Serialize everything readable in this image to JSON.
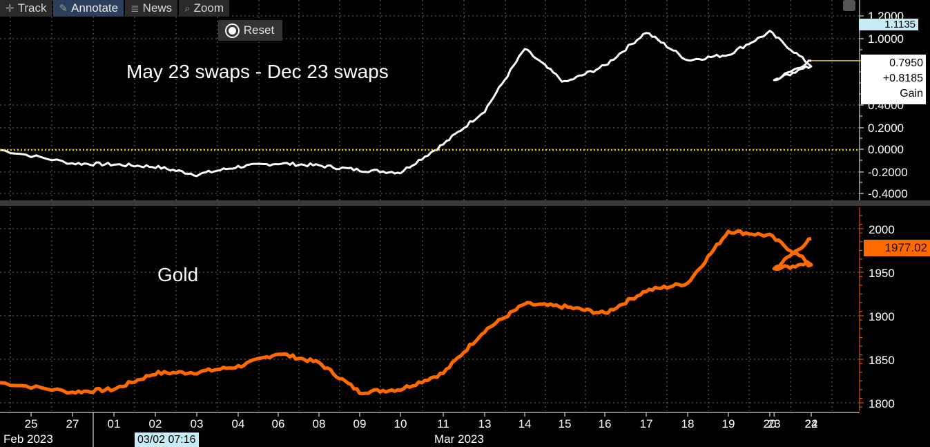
{
  "toolbar": {
    "track": "Track",
    "annotate": "Annotate",
    "news": "News",
    "zoom": "Zoom",
    "reset": "Reset"
  },
  "labels": {
    "top_series": "May 23 swaps - Dec 23 swaps",
    "bottom_series": "Gold",
    "top_high_tag": "1.1135",
    "top_last": "0.7950",
    "top_change": "+0.8185",
    "top_gain": "Gain",
    "bottom_last": "1977.02",
    "cursor_time": "03/02 07:16",
    "month_feb": "Feb 2023",
    "month_mar": "Mar 2023"
  },
  "colors": {
    "background": "#000000",
    "top_line": "#ffffff",
    "bottom_line": "#ff6a00",
    "zero_line": "#e8c400",
    "grid": "#6e6e6e",
    "high_tag": "#c8ecf5"
  },
  "chart_data": [
    {
      "type": "line",
      "title": "May 23 swaps - Dec 23 swaps",
      "ylim": [
        -0.45,
        1.25
      ],
      "y_ticks": [
        "1.2000",
        "1.0000",
        "0.4000",
        "0.2000",
        "0.0000",
        "-0.2000",
        "-0.4000"
      ],
      "zero_line": 0,
      "x": [
        "25",
        "27",
        "01",
        "02",
        "03",
        "04",
        "06",
        "08",
        "09",
        "10",
        "11",
        "13",
        "14",
        "15",
        "16",
        "17",
        "18",
        "19",
        "20",
        "22",
        "23",
        "24"
      ],
      "series": [
        {
          "values": [
            0.0,
            -0.12,
            -0.13,
            -0.15,
            -0.22,
            -0.15,
            -0.12,
            -0.14,
            -0.18,
            -0.2,
            0.05,
            0.35,
            0.9,
            0.6,
            0.75,
            1.05,
            0.8,
            0.85,
            1.05,
            0.75,
            0.62,
            0.795
          ]
        }
      ],
      "last_value": 0.795,
      "high_value": 1.1135,
      "change": 0.8185
    },
    {
      "type": "line",
      "title": "Gold",
      "ylim": [
        1795,
        2010
      ],
      "y_ticks": [
        2000,
        1950,
        1900,
        1850,
        1800
      ],
      "x": [
        "25",
        "27",
        "01",
        "02",
        "03",
        "04",
        "06",
        "08",
        "09",
        "10",
        "11",
        "13",
        "14",
        "15",
        "16",
        "17",
        "18",
        "19",
        "20",
        "22",
        "23",
        "24"
      ],
      "series": [
        {
          "values": [
            1825,
            1815,
            1818,
            1835,
            1836,
            1842,
            1856,
            1846,
            1815,
            1818,
            1835,
            1880,
            1908,
            1905,
            1898,
            1922,
            1930,
            1985,
            1980,
            1950,
            1945,
            1977.02
          ]
        }
      ],
      "last_value": 1977.02
    }
  ]
}
